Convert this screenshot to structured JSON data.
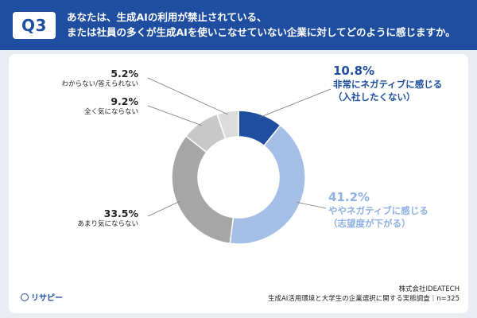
{
  "header": {
    "badge": "Q3",
    "question_line1": "あなたは、生成AIの利用が禁止されている、",
    "question_line2": "または社員の多くが生成AIを使いこなせていない企業に対してどのように感じますか。"
  },
  "chart_data": {
    "type": "pie",
    "donut": true,
    "slices": [
      {
        "label": "非常にネガティブに感じる",
        "sublabel": "（入社したくない）",
        "value": 10.8,
        "display": "10.8%",
        "color": "#1f4ea1"
      },
      {
        "label": "ややネガティブに感じる",
        "sublabel": "（志望度が下がる）",
        "value": 41.2,
        "display": "41.2%",
        "color": "#a4bee6"
      },
      {
        "label": "あまり気にならない",
        "sublabel": "",
        "value": 33.5,
        "display": "33.5%",
        "color": "#a6a6a6"
      },
      {
        "label": "全く気にならない",
        "sublabel": "",
        "value": 9.2,
        "display": "9.2%",
        "color": "#c8c8c8"
      },
      {
        "label": "わからない/答えられない",
        "sublabel": "",
        "value": 5.2,
        "display": "5.2%",
        "color": "#dcdcdc"
      }
    ]
  },
  "footer": {
    "logo": "リサピー",
    "source_line1": "株式会社IDEATECH",
    "source_line2": "生成AI活用環境と大学生の企業選択に関する実態調査｜n=325"
  }
}
